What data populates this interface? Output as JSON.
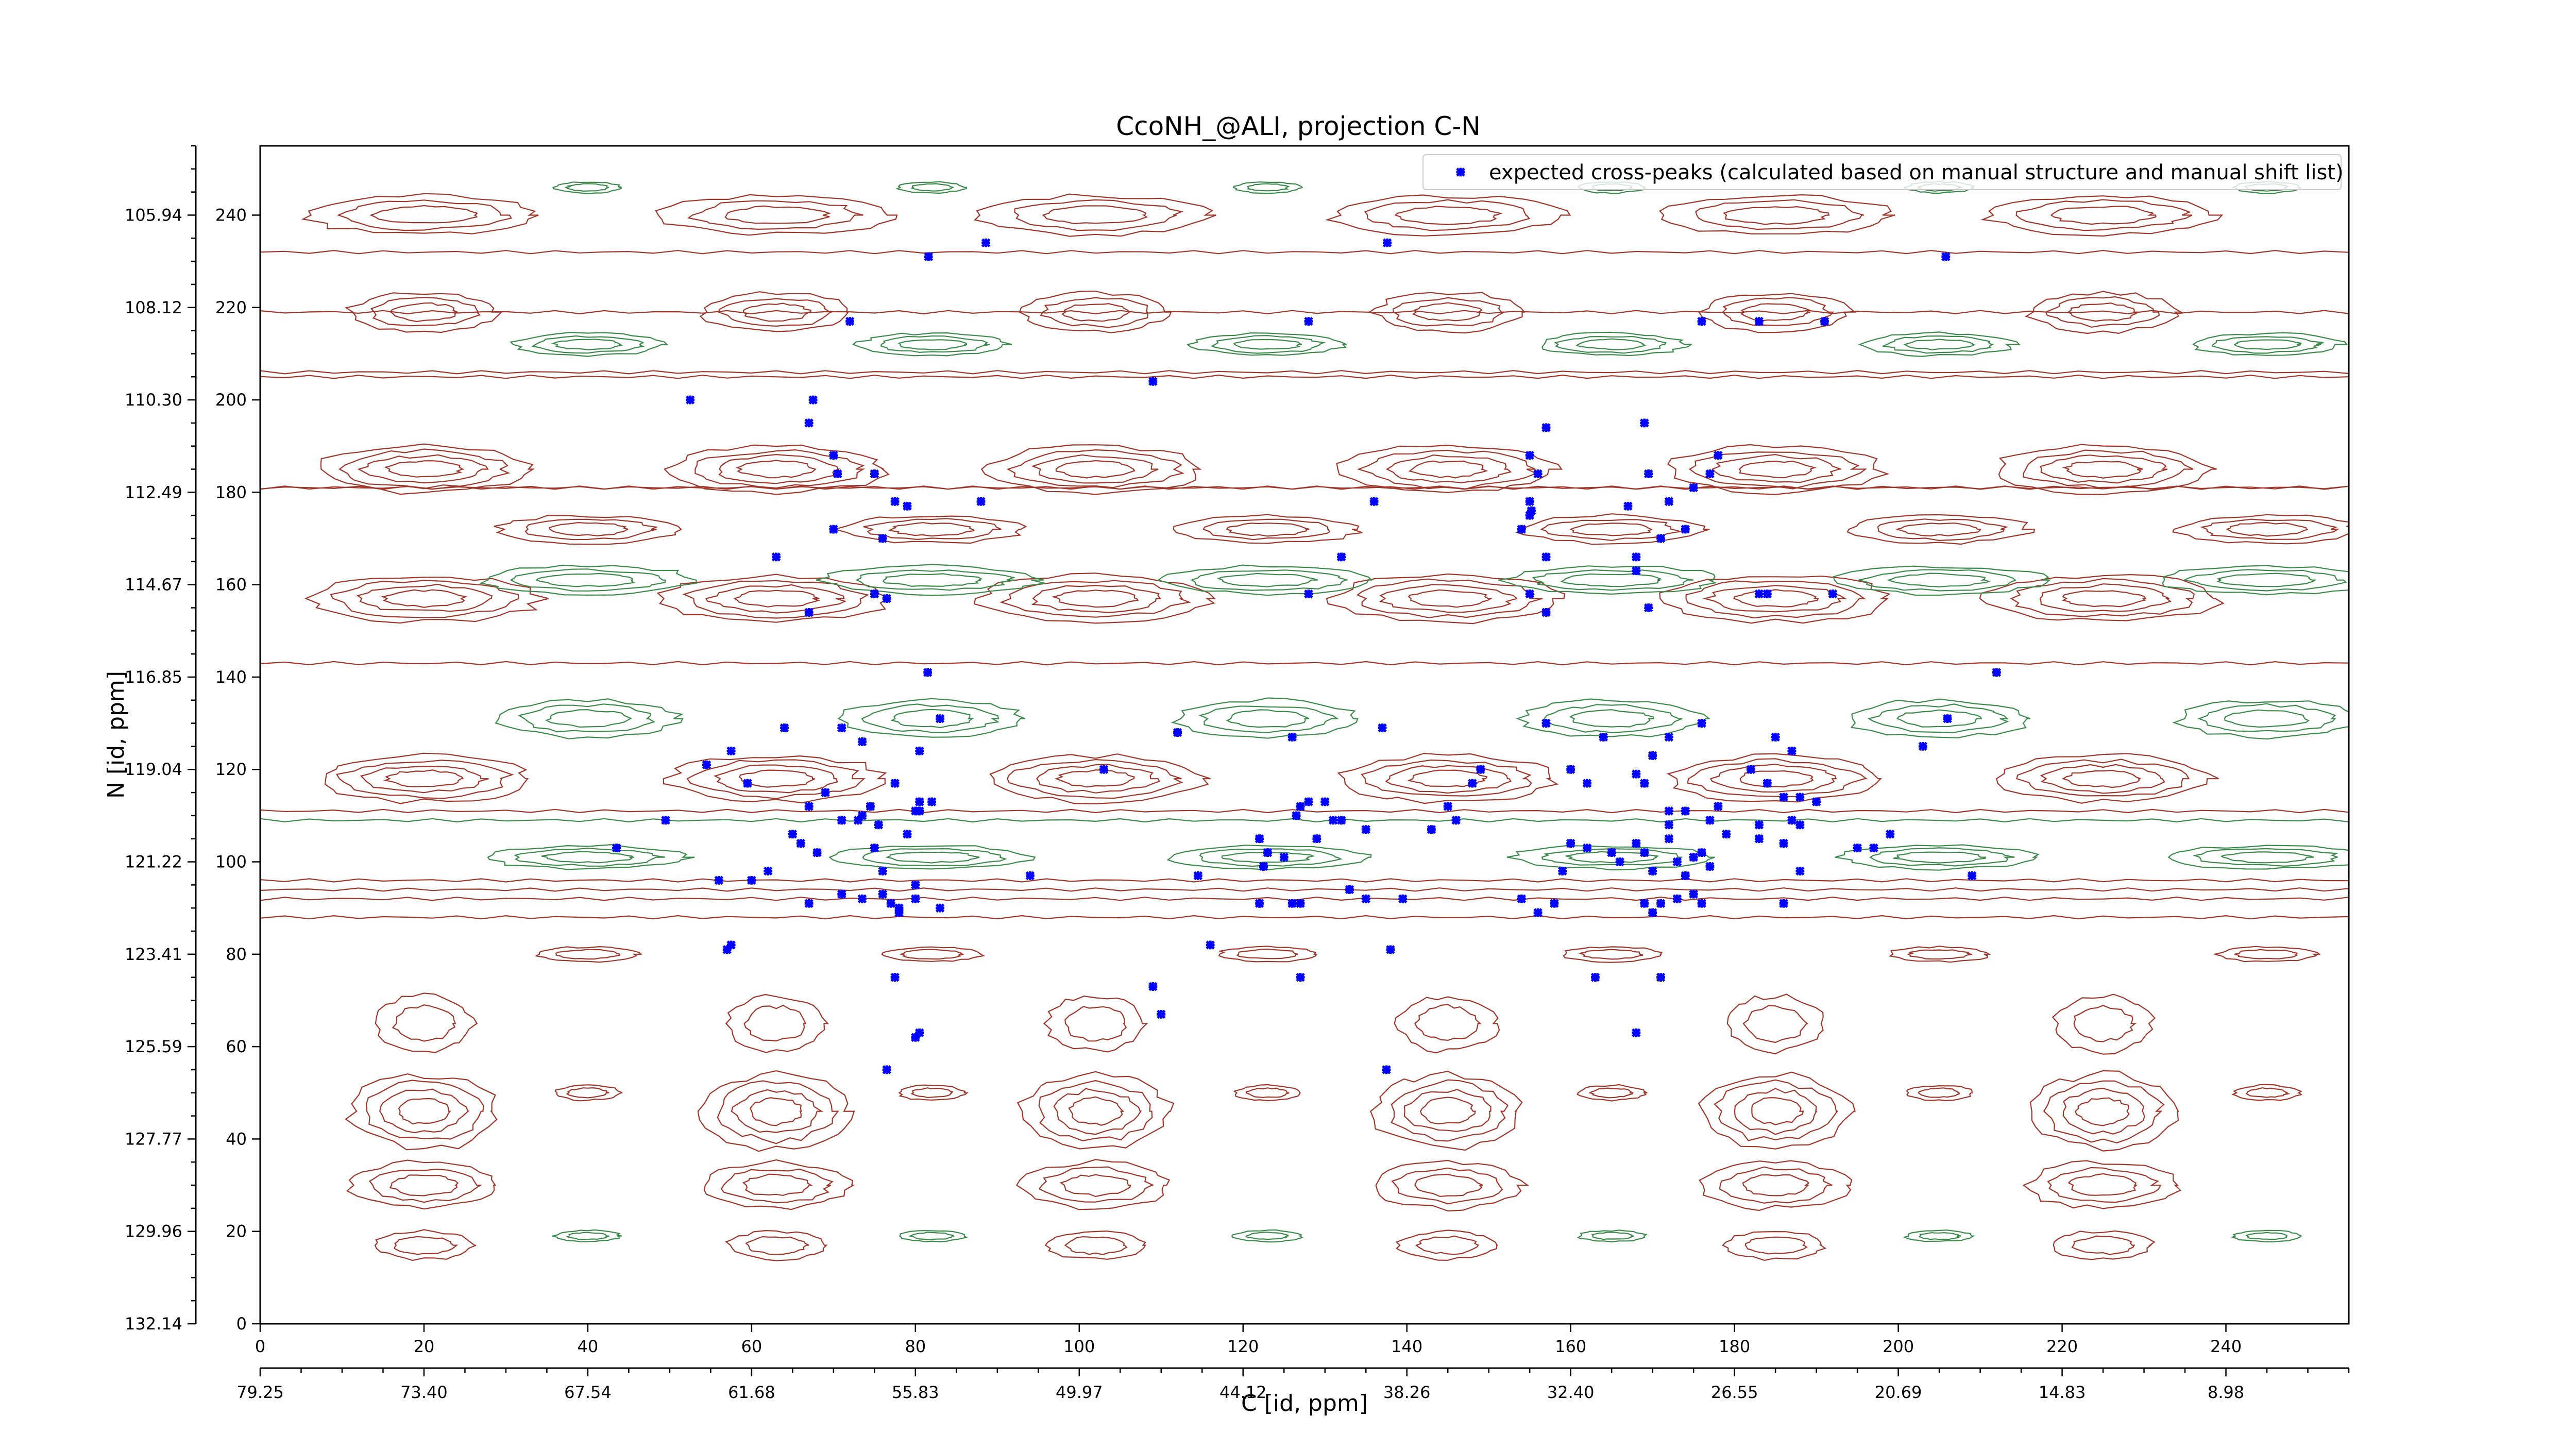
{
  "chart_data": {
    "type": "scatter",
    "title": "CcoNH_@ALI, projection C-N",
    "xlabel": "C [id, ppm]",
    "ylabel": "N [id, ppm]",
    "xlim": [
      0,
      255
    ],
    "ylim": [
      0,
      255
    ],
    "x_ticks": [
      0,
      20,
      40,
      60,
      80,
      100,
      120,
      140,
      160,
      180,
      200,
      220,
      240
    ],
    "x_ppm_labels": [
      "79.25",
      "73.40",
      "67.54",
      "61.68",
      "55.83",
      "49.97",
      "44.12",
      "38.26",
      "32.40",
      "26.55",
      "20.69",
      "14.83",
      "8.98"
    ],
    "y_ticks": [
      0,
      20,
      40,
      60,
      80,
      100,
      120,
      140,
      160,
      180,
      200,
      220,
      240
    ],
    "y_ppm_labels": [
      "132.14",
      "129.96",
      "127.77",
      "125.59",
      "123.41",
      "121.22",
      "119.04",
      "116.85",
      "114.67",
      "112.49",
      "110.30",
      "108.12",
      "105.94"
    ],
    "legend": {
      "placement": "top-right",
      "entries": [
        "expected cross-peaks (calculated based on manual structure and manual shift list)"
      ]
    },
    "colors": {
      "peaks": "#0000ff",
      "contour_positive": "#a0352a",
      "contour_negative": "#3a8a4a"
    },
    "series": [
      {
        "name": "expected cross-peaks (calculated based on manual structure and manual shift list)",
        "points": [
          [
            81.6,
            231
          ],
          [
            88.6,
            234
          ],
          [
            137.6,
            234
          ],
          [
            205.8,
            231
          ],
          [
            72,
            217
          ],
          [
            128,
            217
          ],
          [
            176,
            217
          ],
          [
            183,
            217
          ],
          [
            191,
            217
          ],
          [
            109,
            204
          ],
          [
            52.5,
            200
          ],
          [
            67.5,
            200
          ],
          [
            67,
            195
          ],
          [
            70,
            188
          ],
          [
            70.5,
            184
          ],
          [
            75,
            184
          ],
          [
            77.5,
            178
          ],
          [
            79,
            177
          ],
          [
            88,
            178
          ],
          [
            136,
            178
          ],
          [
            155,
            178
          ],
          [
            155.2,
            176
          ],
          [
            172,
            178
          ],
          [
            167,
            177
          ],
          [
            175,
            181
          ],
          [
            177,
            184
          ],
          [
            178,
            188
          ],
          [
            155,
            188
          ],
          [
            156,
            184
          ],
          [
            157,
            194
          ],
          [
            169,
            195
          ],
          [
            169.5,
            184
          ],
          [
            70,
            172
          ],
          [
            76,
            170
          ],
          [
            63,
            166
          ],
          [
            67,
            154
          ],
          [
            75,
            158
          ],
          [
            76.5,
            157
          ],
          [
            132,
            166
          ],
          [
            157,
            166
          ],
          [
            168,
            163
          ],
          [
            169.5,
            155
          ],
          [
            154,
            172
          ],
          [
            155,
            175
          ],
          [
            171,
            170
          ],
          [
            174,
            172
          ],
          [
            168,
            166
          ],
          [
            183,
            158
          ],
          [
            184,
            158
          ],
          [
            192,
            158
          ],
          [
            128,
            158
          ],
          [
            155,
            158
          ],
          [
            157,
            154
          ],
          [
            81.5,
            141
          ],
          [
            83,
            131
          ],
          [
            212,
            141
          ],
          [
            206,
            131
          ],
          [
            176,
            130
          ],
          [
            126,
            127
          ],
          [
            137,
            129
          ],
          [
            157,
            130
          ],
          [
            164,
            127
          ],
          [
            172,
            127
          ],
          [
            185,
            127
          ],
          [
            54.5,
            121
          ],
          [
            57.5,
            124
          ],
          [
            59.5,
            117
          ],
          [
            64,
            129
          ],
          [
            71,
            129
          ],
          [
            73.5,
            126
          ],
          [
            69,
            115
          ],
          [
            77.5,
            117
          ],
          [
            80.5,
            124
          ],
          [
            80,
            111
          ],
          [
            80.5,
            113
          ],
          [
            82,
            113
          ],
          [
            103,
            120
          ],
          [
            112,
            128
          ],
          [
            148,
            117
          ],
          [
            149,
            120
          ],
          [
            160,
            120
          ],
          [
            162,
            117
          ],
          [
            170,
            123
          ],
          [
            168,
            119
          ],
          [
            169,
            117
          ],
          [
            172,
            111
          ],
          [
            182,
            120
          ],
          [
            184,
            117
          ],
          [
            186,
            114
          ],
          [
            188,
            114
          ],
          [
            187,
            124
          ],
          [
            203,
            125
          ],
          [
            43.5,
            103
          ],
          [
            49.5,
            109
          ],
          [
            65,
            106
          ],
          [
            66,
            104
          ],
          [
            67,
            112
          ],
          [
            68,
            102
          ],
          [
            71,
            109
          ],
          [
            73,
            109
          ],
          [
            73.5,
            110
          ],
          [
            75,
            103
          ],
          [
            74.5,
            112
          ],
          [
            76,
            98
          ],
          [
            75.5,
            108
          ],
          [
            79,
            106
          ],
          [
            80.5,
            111
          ],
          [
            62,
            98
          ],
          [
            56,
            96
          ],
          [
            60,
            96
          ],
          [
            67,
            91
          ],
          [
            71,
            93
          ],
          [
            73.5,
            92
          ],
          [
            76,
            93
          ],
          [
            77,
            91
          ],
          [
            78,
            90
          ],
          [
            78,
            89
          ],
          [
            80,
            95
          ],
          [
            94,
            97
          ],
          [
            80,
            92
          ],
          [
            83,
            90
          ],
          [
            57,
            81
          ],
          [
            57.5,
            82
          ],
          [
            114.5,
            97
          ],
          [
            122,
            105
          ],
          [
            123,
            102
          ],
          [
            122.5,
            99
          ],
          [
            125,
            101
          ],
          [
            126.5,
            110
          ],
          [
            127,
            112
          ],
          [
            128,
            113
          ],
          [
            129,
            105
          ],
          [
            131,
            109
          ],
          [
            130,
            113
          ],
          [
            132,
            109
          ],
          [
            135,
            107
          ],
          [
            122,
            91
          ],
          [
            126,
            91
          ],
          [
            133,
            94
          ],
          [
            135,
            92
          ],
          [
            139.5,
            92
          ],
          [
            143,
            107
          ],
          [
            145,
            112
          ],
          [
            146,
            109
          ],
          [
            154,
            92
          ],
          [
            156,
            89
          ],
          [
            158,
            91
          ],
          [
            159,
            98
          ],
          [
            160,
            104
          ],
          [
            162,
            103
          ],
          [
            165,
            102
          ],
          [
            166,
            100
          ],
          [
            168,
            104
          ],
          [
            169,
            102
          ],
          [
            170,
            98
          ],
          [
            172,
            108
          ],
          [
            173,
            100
          ],
          [
            172,
            105
          ],
          [
            174,
            97
          ],
          [
            175,
            101
          ],
          [
            176,
            102
          ],
          [
            177,
            99
          ],
          [
            177,
            109
          ],
          [
            179,
            106
          ],
          [
            178,
            112
          ],
          [
            174,
            111
          ],
          [
            183,
            108
          ],
          [
            183,
            105
          ],
          [
            186,
            104
          ],
          [
            187,
            109
          ],
          [
            188,
            108
          ],
          [
            190,
            113
          ],
          [
            188,
            98
          ],
          [
            195,
            103
          ],
          [
            197,
            103
          ],
          [
            199,
            106
          ],
          [
            209,
            97
          ],
          [
            169,
            91
          ],
          [
            170,
            89
          ],
          [
            171,
            91
          ],
          [
            173,
            92
          ],
          [
            175,
            93
          ],
          [
            176,
            91
          ],
          [
            186,
            91
          ],
          [
            127,
            91
          ],
          [
            116,
            82
          ],
          [
            138,
            81
          ],
          [
            163,
            75
          ],
          [
            171,
            75
          ],
          [
            127,
            75
          ],
          [
            77.5,
            75
          ],
          [
            109,
            73
          ],
          [
            110,
            67
          ],
          [
            80.5,
            63
          ],
          [
            80,
            62
          ],
          [
            168,
            63
          ],
          [
            137.5,
            55
          ],
          [
            76.5,
            55
          ]
        ]
      }
    ]
  }
}
